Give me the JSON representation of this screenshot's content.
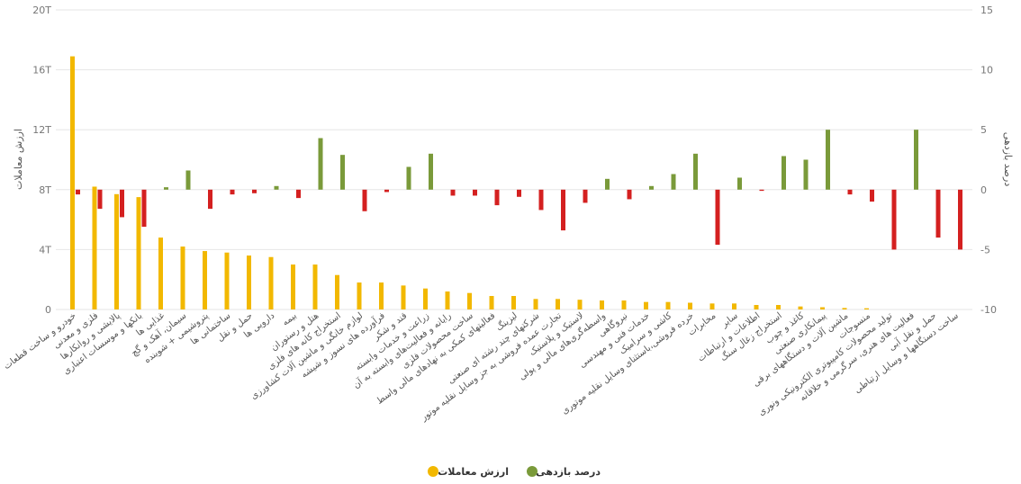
{
  "chart_data": {
    "type": "bar",
    "title": "",
    "left_axis": {
      "label": "ارزش معاملات",
      "ylim": [
        0,
        20
      ],
      "ticks": [
        0,
        4,
        8,
        12,
        16,
        20
      ],
      "tick_labels": [
        "0",
        "4T",
        "8T",
        "12T",
        "16T",
        "20T"
      ]
    },
    "right_axis": {
      "label": "درصد بازدهی",
      "ylim": [
        -10,
        15
      ],
      "ticks": [
        -10,
        -5,
        0,
        5,
        10,
        15
      ],
      "tick_labels": [
        "-10",
        "-5",
        "0",
        "5",
        "10",
        "15"
      ]
    },
    "legend": {
      "placement": "bottom",
      "items": [
        {
          "label": "ارزش معاملات",
          "color": "#f2b800"
        },
        {
          "label": "درصد بازدهی",
          "color": "#7a9a3a"
        }
      ]
    },
    "negative_color": "#d42020",
    "categories": [
      "خودرو و ساخت قطعات",
      "فلزی و معدنی",
      "پالایشی و روانکارها",
      "بانکها و موسسات اعتباری",
      "غذایی ها",
      "سیمان، آهک و گچ",
      "پتروشیمی + شوینده",
      "ساختمانی ها",
      "حمل و نقل",
      "دارویی ها",
      "بیمه",
      "هتل و رستوران",
      "استخراج کانه های فلزی",
      "لوازم خانگی و ماشین آلات کشاورزی",
      "فرآورده های نسوز و شیشه",
      "قند و شکر",
      "زراعت و خدمات وابسته",
      "رایانه و فعالیت‌های وابسته به آن",
      "ساخت محصولات فلزی",
      "فعالیتهای کمکی به نهادهای مالی واسط",
      "لیزینگ",
      "شرکتهای چند رشته ای صنعتی",
      "تجارت عمده فروشی به جز وسایل نقلیه موتور",
      "لاستیک و پلاستیک",
      "واسطه‌گری‌های مالی و پولی",
      "نیروگاهی",
      "خدمات فنی و مهندسی",
      "کاشی و سرامیک",
      "خرده فروشی،باستثنای وسایل نقلیه موتوری",
      "مخابرات",
      "سایر",
      "اطلاعات و ارتباطات",
      "استخراج زغال سنگ",
      "کاغذ و چوب",
      "پیمانکاری صنعتی",
      "ماشین آلات و دستگاههای برقی",
      "منسوجات",
      "تولید محصولات کامپیوتری الکترونیکی ونوری",
      "فعالیت های هنری، سرگرمی و خلاقانه",
      "حمل و نقل آبی",
      "ساخت دستگاهها و وسایل ارتباطی"
    ],
    "series": [
      {
        "name": "ارزش معاملات",
        "axis": "left",
        "values": [
          16.9,
          8.2,
          7.7,
          7.5,
          4.8,
          4.2,
          3.9,
          3.8,
          3.6,
          3.5,
          3.0,
          3.0,
          2.3,
          1.8,
          1.8,
          1.6,
          1.4,
          1.2,
          1.1,
          0.9,
          0.9,
          0.7,
          0.7,
          0.65,
          0.6,
          0.6,
          0.5,
          0.5,
          0.45,
          0.4,
          0.4,
          0.3,
          0.3,
          0.2,
          0.15,
          0.1,
          0.08,
          0.0,
          0.0,
          0.0,
          0.0
        ]
      },
      {
        "name": "درصد بازدهی",
        "axis": "right",
        "values": [
          -0.4,
          -1.6,
          -2.3,
          -3.1,
          0.2,
          1.6,
          -1.6,
          -0.4,
          -0.3,
          0.3,
          -0.7,
          4.3,
          2.9,
          -1.8,
          -0.2,
          1.9,
          3.0,
          -0.5,
          -0.5,
          -1.3,
          -0.6,
          -1.7,
          -3.4,
          -1.1,
          0.9,
          -0.8,
          0.3,
          1.3,
          3.0,
          -4.6,
          1.0,
          -0.1,
          2.8,
          2.5,
          5.0,
          -0.4,
          -1.0,
          -5.0,
          5.0,
          -4.0,
          -5.0
        ]
      }
    ]
  }
}
